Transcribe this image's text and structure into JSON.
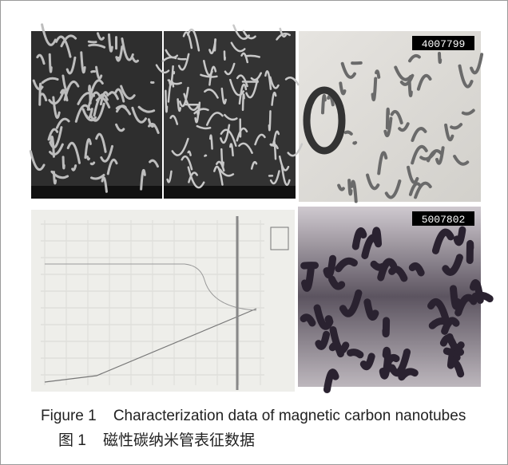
{
  "figure": {
    "panels": {
      "tem_top_code": "4007799",
      "tem_bottom_code": "5007802"
    },
    "caption_en": "Figure 1    Characterization data of magnetic carbon nanotubes",
    "caption_zh": "图 1    磁性碳纳米管表征数据"
  }
}
